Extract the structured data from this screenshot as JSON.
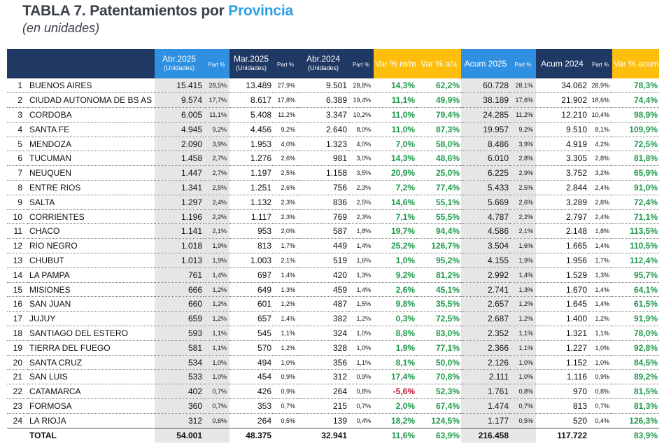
{
  "header": {
    "title_prefix": "TABLA 7. Patentamientos por ",
    "title_accent": "Provincia",
    "subtitle": "(en unidades)"
  },
  "columns": {
    "abr2025": "Abr.2025",
    "mar2025": "Mar.2025",
    "abr2024": "Abr.2024",
    "unidades": "(Unidades)",
    "part": "Part %",
    "var_mm": "Var % m/m",
    "var_aa": "Var % a/a",
    "acum2025": "Acum 2025",
    "acum2024": "Acum 2024",
    "var_acum": "Var % acum"
  },
  "rows": [
    {
      "n": "1",
      "name": "BUENOS AIRES",
      "abr25": "15.415",
      "p1": "28,5%",
      "mar25": "13.489",
      "p2": "27,9%",
      "abr24": "9.501",
      "p3": "28,8%",
      "vmm": "14,3%",
      "vaa": "62,2%",
      "ac25": "60.728",
      "p4": "28,1%",
      "ac24": "34.062",
      "p5": "28,9%",
      "vac": "78,3%"
    },
    {
      "n": "2",
      "name": "CIUDAD AUTONOMA DE BS AS",
      "abr25": "9.574",
      "p1": "17,7%",
      "mar25": "8.617",
      "p2": "17,8%",
      "abr24": "6.389",
      "p3": "19,4%",
      "vmm": "11,1%",
      "vaa": "49,9%",
      "ac25": "38.189",
      "p4": "17,6%",
      "ac24": "21.902",
      "p5": "18,6%",
      "vac": "74,4%"
    },
    {
      "n": "3",
      "name": "CORDOBA",
      "abr25": "6.005",
      "p1": "11,1%",
      "mar25": "5.408",
      "p2": "11,2%",
      "abr24": "3.347",
      "p3": "10,2%",
      "vmm": "11,0%",
      "vaa": "79,4%",
      "ac25": "24.285",
      "p4": "11,2%",
      "ac24": "12.210",
      "p5": "10,4%",
      "vac": "98,9%"
    },
    {
      "n": "4",
      "name": "SANTA FE",
      "abr25": "4.945",
      "p1": "9,2%",
      "mar25": "4.456",
      "p2": "9,2%",
      "abr24": "2.640",
      "p3": "8,0%",
      "vmm": "11,0%",
      "vaa": "87,3%",
      "ac25": "19.957",
      "p4": "9,2%",
      "ac24": "9.510",
      "p5": "8,1%",
      "vac": "109,9%"
    },
    {
      "n": "5",
      "name": "MENDOZA",
      "abr25": "2.090",
      "p1": "3,9%",
      "mar25": "1.953",
      "p2": "4,0%",
      "abr24": "1.323",
      "p3": "4,0%",
      "vmm": "7,0%",
      "vaa": "58,0%",
      "ac25": "8.486",
      "p4": "3,9%",
      "ac24": "4.919",
      "p5": "4,2%",
      "vac": "72,5%"
    },
    {
      "n": "6",
      "name": "TUCUMAN",
      "abr25": "1.458",
      "p1": "2,7%",
      "mar25": "1.276",
      "p2": "2,6%",
      "abr24": "981",
      "p3": "3,0%",
      "vmm": "14,3%",
      "vaa": "48,6%",
      "ac25": "6.010",
      "p4": "2,8%",
      "ac24": "3.305",
      "p5": "2,8%",
      "vac": "81,8%"
    },
    {
      "n": "7",
      "name": "NEUQUEN",
      "abr25": "1.447",
      "p1": "2,7%",
      "mar25": "1.197",
      "p2": "2,5%",
      "abr24": "1.158",
      "p3": "3,5%",
      "vmm": "20,9%",
      "vaa": "25,0%",
      "ac25": "6.225",
      "p4": "2,9%",
      "ac24": "3.752",
      "p5": "3,2%",
      "vac": "65,9%"
    },
    {
      "n": "8",
      "name": "ENTRE RIOS",
      "abr25": "1.341",
      "p1": "2,5%",
      "mar25": "1.251",
      "p2": "2,6%",
      "abr24": "756",
      "p3": "2,3%",
      "vmm": "7,2%",
      "vaa": "77,4%",
      "ac25": "5.433",
      "p4": "2,5%",
      "ac24": "2.844",
      "p5": "2,4%",
      "vac": "91,0%"
    },
    {
      "n": "9",
      "name": "SALTA",
      "abr25": "1.297",
      "p1": "2,4%",
      "mar25": "1.132",
      "p2": "2,3%",
      "abr24": "836",
      "p3": "2,5%",
      "vmm": "14,6%",
      "vaa": "55,1%",
      "ac25": "5.669",
      "p4": "2,6%",
      "ac24": "3.289",
      "p5": "2,8%",
      "vac": "72,4%"
    },
    {
      "n": "10",
      "name": "CORRIENTES",
      "abr25": "1.196",
      "p1": "2,2%",
      "mar25": "1.117",
      "p2": "2,3%",
      "abr24": "769",
      "p3": "2,3%",
      "vmm": "7,1%",
      "vaa": "55,5%",
      "ac25": "4.787",
      "p4": "2,2%",
      "ac24": "2.797",
      "p5": "2,4%",
      "vac": "71,1%"
    },
    {
      "n": "11",
      "name": "CHACO",
      "abr25": "1.141",
      "p1": "2,1%",
      "mar25": "953",
      "p2": "2,0%",
      "abr24": "587",
      "p3": "1,8%",
      "vmm": "19,7%",
      "vaa": "94,4%",
      "ac25": "4.586",
      "p4": "2,1%",
      "ac24": "2.148",
      "p5": "1,8%",
      "vac": "113,5%"
    },
    {
      "n": "12",
      "name": "RIO NEGRO",
      "abr25": "1.018",
      "p1": "1,9%",
      "mar25": "813",
      "p2": "1,7%",
      "abr24": "449",
      "p3": "1,4%",
      "vmm": "25,2%",
      "vaa": "126,7%",
      "ac25": "3.504",
      "p4": "1,6%",
      "ac24": "1.665",
      "p5": "1,4%",
      "vac": "110,5%"
    },
    {
      "n": "13",
      "name": "CHUBUT",
      "abr25": "1.013",
      "p1": "1,9%",
      "mar25": "1.003",
      "p2": "2,1%",
      "abr24": "519",
      "p3": "1,6%",
      "vmm": "1,0%",
      "vaa": "95,2%",
      "ac25": "4.155",
      "p4": "1,9%",
      "ac24": "1.956",
      "p5": "1,7%",
      "vac": "112,4%"
    },
    {
      "n": "14",
      "name": "LA PAMPA",
      "abr25": "761",
      "p1": "1,4%",
      "mar25": "697",
      "p2": "1,4%",
      "abr24": "420",
      "p3": "1,3%",
      "vmm": "9,2%",
      "vaa": "81,2%",
      "ac25": "2.992",
      "p4": "1,4%",
      "ac24": "1.529",
      "p5": "1,3%",
      "vac": "95,7%"
    },
    {
      "n": "15",
      "name": "MISIONES",
      "abr25": "666",
      "p1": "1,2%",
      "mar25": "649",
      "p2": "1,3%",
      "abr24": "459",
      "p3": "1,4%",
      "vmm": "2,6%",
      "vaa": "45,1%",
      "ac25": "2.741",
      "p4": "1,3%",
      "ac24": "1.670",
      "p5": "1,4%",
      "vac": "64,1%"
    },
    {
      "n": "16",
      "name": "SAN JUAN",
      "abr25": "660",
      "p1": "1,2%",
      "mar25": "601",
      "p2": "1,2%",
      "abr24": "487",
      "p3": "1,5%",
      "vmm": "9,8%",
      "vaa": "35,5%",
      "ac25": "2.657",
      "p4": "1,2%",
      "ac24": "1.645",
      "p5": "1,4%",
      "vac": "61,5%"
    },
    {
      "n": "17",
      "name": "JUJUY",
      "abr25": "659",
      "p1": "1,2%",
      "mar25": "657",
      "p2": "1,4%",
      "abr24": "382",
      "p3": "1,2%",
      "vmm": "0,3%",
      "vaa": "72,5%",
      "ac25": "2.687",
      "p4": "1,2%",
      "ac24": "1.400",
      "p5": "1,2%",
      "vac": "91,9%"
    },
    {
      "n": "18",
      "name": "SANTIAGO DEL ESTERO",
      "abr25": "593",
      "p1": "1,1%",
      "mar25": "545",
      "p2": "1,1%",
      "abr24": "324",
      "p3": "1,0%",
      "vmm": "8,8%",
      "vaa": "83,0%",
      "ac25": "2.352",
      "p4": "1,1%",
      "ac24": "1.321",
      "p5": "1,1%",
      "vac": "78,0%"
    },
    {
      "n": "19",
      "name": "TIERRA DEL FUEGO",
      "abr25": "581",
      "p1": "1,1%",
      "mar25": "570",
      "p2": "1,2%",
      "abr24": "328",
      "p3": "1,0%",
      "vmm": "1,9%",
      "vaa": "77,1%",
      "ac25": "2.366",
      "p4": "1,1%",
      "ac24": "1.227",
      "p5": "1,0%",
      "vac": "92,8%"
    },
    {
      "n": "20",
      "name": "SANTA CRUZ",
      "abr25": "534",
      "p1": "1,0%",
      "mar25": "494",
      "p2": "1,0%",
      "abr24": "356",
      "p3": "1,1%",
      "vmm": "8,1%",
      "vaa": "50,0%",
      "ac25": "2.126",
      "p4": "1,0%",
      "ac24": "1.152",
      "p5": "1,0%",
      "vac": "84,5%"
    },
    {
      "n": "21",
      "name": "SAN LUIS",
      "abr25": "533",
      "p1": "1,0%",
      "mar25": "454",
      "p2": "0,9%",
      "abr24": "312",
      "p3": "0,9%",
      "vmm": "17,4%",
      "vaa": "70,8%",
      "ac25": "2.111",
      "p4": "1,0%",
      "ac24": "1.116",
      "p5": "0,9%",
      "vac": "89,2%"
    },
    {
      "n": "22",
      "name": "CATAMARCA",
      "abr25": "402",
      "p1": "0,7%",
      "mar25": "426",
      "p2": "0,9%",
      "abr24": "264",
      "p3": "0,8%",
      "vmm": "-5,6%",
      "vaa": "52,3%",
      "ac25": "1.761",
      "p4": "0,8%",
      "ac24": "970",
      "p5": "0,8%",
      "vac": "81,5%",
      "neg": true
    },
    {
      "n": "23",
      "name": "FORMOSA",
      "abr25": "360",
      "p1": "0,7%",
      "mar25": "353",
      "p2": "0,7%",
      "abr24": "215",
      "p3": "0,7%",
      "vmm": "2,0%",
      "vaa": "67,4%",
      "ac25": "1.474",
      "p4": "0,7%",
      "ac24": "813",
      "p5": "0,7%",
      "vac": "81,3%"
    },
    {
      "n": "24",
      "name": "LA RIOJA",
      "abr25": "312",
      "p1": "0,6%",
      "mar25": "264",
      "p2": "0,5%",
      "abr24": "139",
      "p3": "0,4%",
      "vmm": "18,2%",
      "vaa": "124,5%",
      "ac25": "1.177",
      "p4": "0,5%",
      "ac24": "520",
      "p5": "0,4%",
      "vac": "126,3%"
    }
  ],
  "total": {
    "label": "TOTAL",
    "abr25": "54.001",
    "mar25": "48.375",
    "abr24": "32.941",
    "vmm": "11,6%",
    "vaa": "63,9%",
    "ac25": "216.458",
    "ac24": "117.722",
    "vac": "83,9%"
  },
  "colors": {
    "navy": "#203864",
    "blue": "#2f8fe0",
    "yellow": "#fdbe0d",
    "green": "#1e9b4a",
    "red": "#c8102e"
  }
}
